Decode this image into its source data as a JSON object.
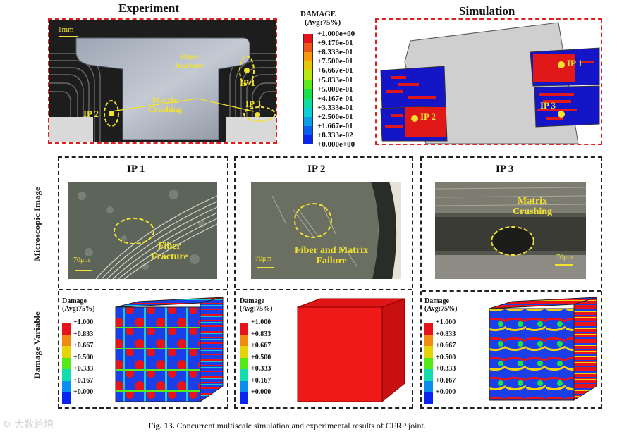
{
  "titles": {
    "experiment": "Experiment",
    "simulation": "Simulation"
  },
  "experiment": {
    "scale": "1mm",
    "labels": {
      "fiber_fracture": "Fiber\nfracture",
      "matrix_crushing": "Matrix\nCrushing",
      "ip1": "IP 1",
      "ip2": "IP 2",
      "ip3": "IP 3"
    }
  },
  "legend": {
    "title1": "DAMAGE",
    "title2": "(Avg:75%)",
    "entries": [
      "+1.000e+00",
      "+9.176e-01",
      "+8.333e-01",
      "+7.500e-01",
      "+6.667e-01",
      "+5.833e-01",
      "+5.000e-01",
      "+4.167e-01",
      "+3.333e-01",
      "+2.500e-01",
      "+1.667e-01",
      "+8.333e-02",
      "+0.000e+00"
    ],
    "colors": [
      "#e8121c",
      "#f0541a",
      "#f79a0f",
      "#e6c80a",
      "#b8e812",
      "#5fe81a",
      "#19e04b",
      "#12dda0",
      "#0ad0d8",
      "#0a9ee8",
      "#0a5ff0",
      "#0a24f0"
    ]
  },
  "simulation": {
    "ip1": "IP 1",
    "ip2": "IP 2",
    "ip3": "IP 3"
  },
  "panels": [
    {
      "title": "IP 1",
      "annotation": "Fiber\nFracture",
      "scale": "70μm"
    },
    {
      "title": "IP 2",
      "annotation": "Fiber and Matrix\nFailure",
      "scale": "70μm"
    },
    {
      "title": "IP 3",
      "annotation": "Matrix\nCrushing",
      "scale": "70μm"
    }
  ],
  "row_labels": {
    "micro": "Microscopic Image",
    "damage": "Damage Variable"
  },
  "small_legend": {
    "title1": "Damage",
    "title2": "(Avg:75%)",
    "entries": [
      "+1.000",
      "+0.833",
      "+0.667",
      "+0.500",
      "+0.333",
      "+0.167",
      "+0.000"
    ],
    "colors": [
      "#e8121c",
      "#f08a12",
      "#e6d40a",
      "#57e81a",
      "#12dcb0",
      "#0a8ef0",
      "#0a24f0"
    ]
  },
  "caption": {
    "label": "Fig. 13.",
    "text": "Concurrent multiscale simulation and experimental results of CFRP joint."
  },
  "watermark": "大数跨境"
}
